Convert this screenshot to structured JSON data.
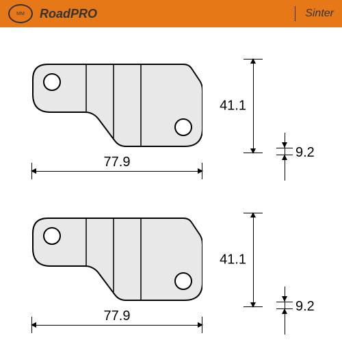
{
  "header": {
    "bg_color": "#e67817",
    "text_color": "#333333",
    "logo_border": "#333333",
    "logo_text": "MM",
    "title": "RoadPRO",
    "right": "Sinter",
    "divider_color": "#333333"
  },
  "diagram": {
    "pad_fill": "#e8e8e8",
    "pad_stroke": "#000000",
    "dim_color": "#000000",
    "font_size": 20,
    "rows": [
      {
        "width_mm": "77.9",
        "height_mm": "41.1",
        "thickness_mm": "9.2"
      },
      {
        "width_mm": "77.9",
        "height_mm": "41.1",
        "thickness_mm": "9.2"
      }
    ]
  }
}
